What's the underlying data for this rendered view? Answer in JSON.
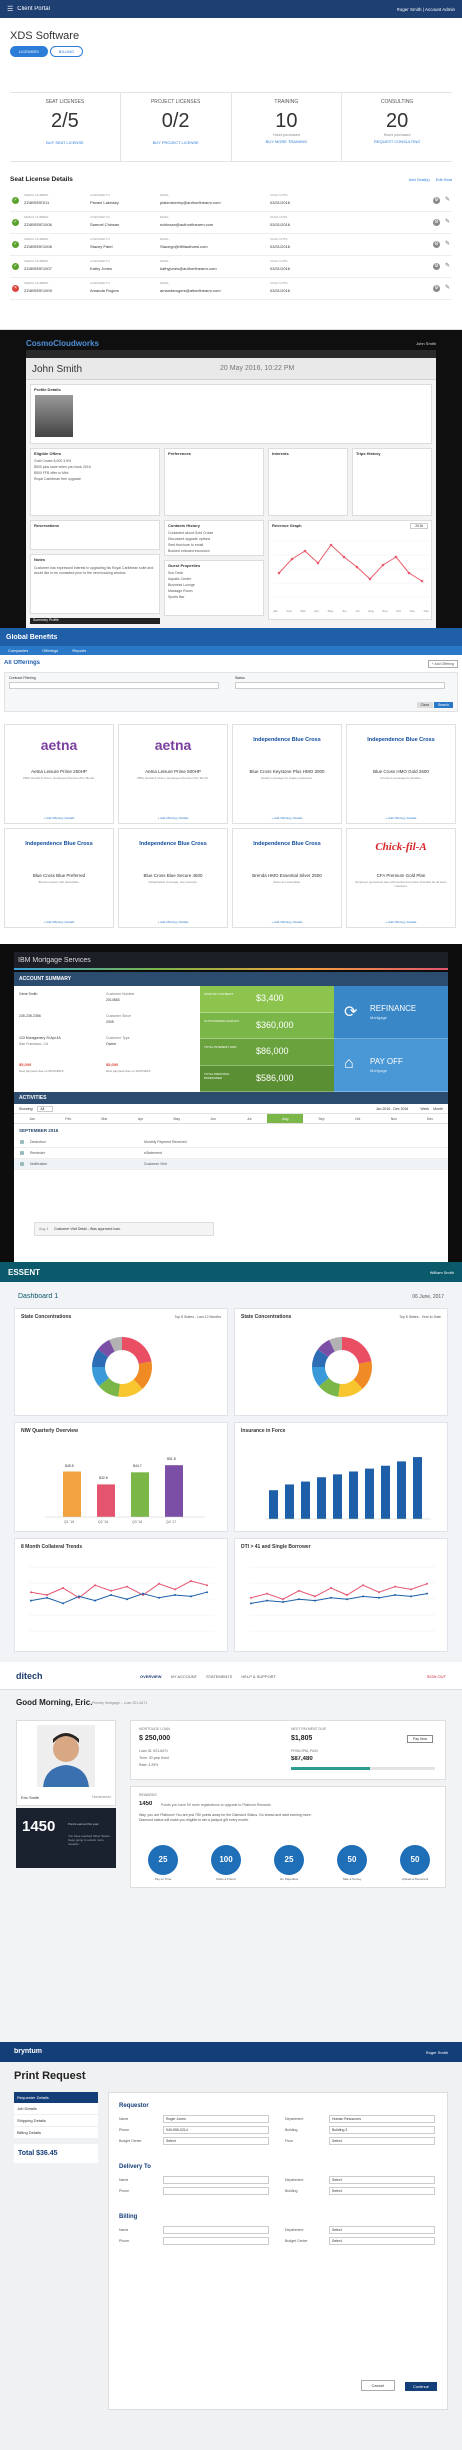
{
  "portal": {
    "app_name": "Client Portal",
    "user": "Roger Smith | Account Admin",
    "title": "XDS Software",
    "tabs": [
      "LICENSES",
      "BILLING"
    ],
    "cards": [
      {
        "title": "SEAT LICENSES",
        "value": "2/5",
        "link": "BUY SEAT LICENSE"
      },
      {
        "title": "PROJECT LICENSES",
        "value": "0/2",
        "link": "BUY PROJECT LICENSE"
      },
      {
        "title": "TRAINING",
        "value": "10",
        "sub": "Hours purchased",
        "link": "BUY MORE TRAINING"
      },
      {
        "title": "CONSULTING",
        "value": "20",
        "sub": "Hours purchased",
        "link": "REQUEST CONSULTING"
      }
    ],
    "section_title": "Seat License Details",
    "section_actions": [
      "Add Seat(s)",
      "Edit Seat"
    ],
    "col_labels": [
      "SERIAL NUMBER",
      "LICENSED TO",
      "EMAIL",
      "VALID UNTIL"
    ],
    "rows": [
      {
        "serial": "ZZ4BSEIE011",
        "name": "Pavani Lakinsky",
        "email": "plakinskeriny@authorfinearm.com",
        "date": "03/31/2016",
        "status": "ok"
      },
      {
        "serial": "ZZ4BSEIE1006",
        "name": "Samuel Chinsan",
        "email": "schinsan@authorfinearm.com",
        "date": "03/31/2016",
        "status": "ok"
      },
      {
        "serial": "ZZ4BSEIE1008",
        "name": "Stacey Patel",
        "email": "Staceyp@rtfiilautharsi.com",
        "date": "03/31/2016",
        "status": "ok"
      },
      {
        "serial": "ZZ4BSEIE1007",
        "name": "Kathy Jones",
        "email": "kathyjones@authorfinearm.com",
        "date": "03/31/2016",
        "status": "ok"
      },
      {
        "serial": "ZZ4BSEIE1009",
        "name": "Amanda Rogers",
        "email": "amandarogers@altonfinearm.com",
        "date": "03/31/2016",
        "status": "err"
      }
    ]
  },
  "crm": {
    "brand": "CosmoCloudworks",
    "user_name": "John Smith",
    "page_title": "John Smith",
    "date": "20 May 2016, 10:22 PM",
    "sections": [
      "Profile Details",
      "Eligible Offers",
      "Preferences",
      "Interests",
      "Trips History",
      "Reservations",
      "Contacts History",
      "Revenue Graph",
      "Notes",
      "Guest Properties"
    ],
    "offers": [
      "Gold Cruise 8,000 3.5%",
      "$500 plus save when you book 2016",
      "$500 FFB offer in Mini",
      "Royal Caribbean free upgrade"
    ],
    "contacts": [
      "Contacted about Gold Cruise",
      "Discussed upgrade options",
      "Sent brochure to email",
      "Booked onboard excursion"
    ],
    "notes_text": "Customer has expressed interest in upgrading his Royal Caribbean suite and would like to be contacted prior to the next booking window.",
    "guest_props": [
      "Sun Deck",
      "Aquatic Center",
      "Business Lounge",
      "Massage Room",
      "Sports Bar"
    ],
    "months": [
      "Jan",
      "Feb",
      "Mar",
      "Apr",
      "May",
      "Jun",
      "Jul",
      "Aug",
      "Sep",
      "Oct",
      "Nov",
      "Dec"
    ],
    "graph_select": "2016",
    "footer": "Summary Profile"
  },
  "benefits": {
    "brand": "Global Benefits",
    "nav": [
      "Companies",
      "Offerings",
      "Reports"
    ],
    "title": "All Offerings",
    "add_label": "+ Add Offering",
    "filter_labels": [
      "Contract Filtering",
      "Status"
    ],
    "buttons": [
      "Clear",
      "Search"
    ],
    "offers": [
      {
        "logo": "aetna",
        "name": "Aetna Leisure Prime 250HP",
        "desc": "PBM, Dental & Vision. Employee Premium Per Month.",
        "brand": "aetna"
      },
      {
        "logo": "aetna",
        "name": "Aetna Leisure Prime 500HP",
        "desc": "PBM, Dental & Vision. Employee Premium Per Month.",
        "brand": "aetna"
      },
      {
        "logo": "Independence Blue Cross",
        "name": "Blue Cross Keystone Plus HMO 3000",
        "desc": "Health Coverage for single employees.",
        "brand": "ibc"
      },
      {
        "logo": "Independence Blue Cross",
        "name": "Blue Cross HMO Gold 2500",
        "desc": "Premium coverage for families.",
        "brand": "ibc"
      },
      {
        "logo": "Independence Blue Cross",
        "name": "Blue Cross Blue Preferred",
        "desc": "Broad network with deductible.",
        "brand": "ibc"
      },
      {
        "logo": "Independence Blue Cross",
        "name": "Blue Cross Blue Secure 4500",
        "desc": "Catastrophic coverage, low premium.",
        "brand": "ibc"
      },
      {
        "logo": "Independence Blue Cross",
        "name": "Brenda HMO Essential Silver 2500",
        "desc": "Silver tier essentials.",
        "brand": "ibc"
      },
      {
        "logo": "Chick-fil-A",
        "name": "CFA Premium Gold Plan",
        "desc": "Employer sponsored plan with dental and vision included for all team members.",
        "brand": "cfa"
      }
    ],
    "footer_link": "+ Add Offering  |  Details"
  },
  "mortgage": {
    "brand": "IBM Mortgage Services",
    "summary_title": "ACCOUNT SUMMARY",
    "rows": [
      {
        "l1": "Gene Smith",
        "v1": "",
        "l2": "Customer Number",
        "v2": "2014563"
      },
      {
        "l1": "235-235-2356",
        "v1": "",
        "l2": "Customer Since",
        "v2": "2005"
      },
      {
        "l1": "123 Montgomery St Apt 4A",
        "v1": "San Francisco, CA",
        "l2": "Customer Type",
        "v2": "Owner"
      }
    ],
    "amounts": [
      "$5,000",
      "$5,000"
    ],
    "amount_labels": [
      "Next payment due on 09/15/2016",
      "Next payment due on 10/15/2016"
    ],
    "metrics": [
      {
        "label": "MONTHLY PAYMENT",
        "value": "$3,400"
      },
      {
        "label": "OUTSTANDING AMOUNT",
        "value": "$360,000"
      },
      {
        "label": "TOTAL INTEREST PAID",
        "value": "$86,000"
      },
      {
        "label": "TOTAL PRINCIPAL BORROWED",
        "value": "$586,000"
      }
    ],
    "actions": [
      {
        "title": "REFINANCE",
        "sub": "Mortgage"
      },
      {
        "title": "PAY OFF",
        "sub": "Mortgage"
      }
    ],
    "activities_title": "ACTIVITIES",
    "show_label": "Showing:",
    "show_val": "All",
    "year_nav": "Jan 2016 - Dec 2016",
    "view_modes": [
      "Week",
      "Month"
    ],
    "months": [
      "Jan",
      "Feb",
      "Mar",
      "Apr",
      "May",
      "Jun",
      "Jul",
      "Aug",
      "Sep",
      "Oct",
      "Nov",
      "Dec"
    ],
    "active_month": "Aug",
    "month_heading": "SEPTEMBER 2016",
    "activities": [
      {
        "type": "Deduction",
        "desc": "Monthly Payment Received"
      },
      {
        "type": "Reminder",
        "desc": "eStatement"
      },
      {
        "type": "Notification",
        "desc": "Customer Visit"
      }
    ],
    "comment_label": "Aug 4",
    "comment": "Customer Visit Detail - Was approved loan."
  },
  "essent": {
    "brand": "ESSENT",
    "user": "William Smith",
    "dash_title": "Dashboard 1",
    "date": "06 June, 2017",
    "charts": [
      {
        "title": "State Concentrations",
        "filter": "Top 8 States - Last 12 Months"
      },
      {
        "title": "State Concentrations",
        "filter": "Top 8 States - Year to Date"
      },
      {
        "title": "NIW Quarterly Overview",
        "filter": ""
      },
      {
        "title": "Insurance in Force",
        "filter": ""
      },
      {
        "title": "8 Month Collateral Trends",
        "filter": ""
      },
      {
        "title": "DTI > 41 and Single Borrower",
        "filter": ""
      }
    ],
    "niw": {
      "bars": [
        45.5,
        32.6,
        44.7,
        51.8
      ],
      "labels": [
        "$45.5",
        "$32.6",
        "$44.7",
        "$51.8"
      ],
      "quarters": [
        "Q1 '16",
        "Q2 '16",
        "Q3 '16",
        "Q4 '17"
      ],
      "colors": [
        "#f2a340",
        "#e4546e",
        "#7ab648",
        "#7b4fa6"
      ]
    },
    "iif": {
      "quarters": [
        "Q1",
        "Q2",
        "Q3",
        "Q4",
        "Q5",
        "Q6",
        "Q7",
        "Q8",
        "Q9",
        "Q10"
      ],
      "values": [
        40,
        48,
        52,
        58,
        62,
        66,
        70,
        74,
        80,
        86
      ]
    },
    "donut_colors": [
      "#e94e62",
      "#f08a24",
      "#f7c52d",
      "#7ab648",
      "#3a9ad9",
      "#2c6db5",
      "#7b4fa6",
      "#b2b2b2"
    ],
    "donut_values": [
      22,
      16,
      14,
      12,
      11,
      10,
      8,
      7
    ]
  },
  "selfservice": {
    "brand": "ditech",
    "nav": [
      "OVERVIEW",
      "MY ACCOUNT",
      "STATEMENTS",
      "HELP & SUPPORT"
    ],
    "signout": "SIGN OUT",
    "greeting": "Good Morning, Eric.",
    "sub_greeting": "Primary Mortgage – Loan 921-6471",
    "profile_name": "Eric Smith",
    "profile_tag": "Homeowner",
    "points": "1450",
    "points_label": "Points earned this year",
    "points_desc": "You have reached Silver Status. Keep going to unlock more rewards.",
    "loan_label": "MORTGAGE LOAN",
    "loan_value": "$ 250,000",
    "loan_meta": [
      "Loan ID: 921-6471",
      "Term: 30 year fixed",
      "Rate: 4.25%"
    ],
    "payment_label": "NEXT PAYMENT DUE",
    "payment_value": "$1,805",
    "payment_btn": "Pay Now",
    "principal_label": "PRINCIPAL PAID",
    "principal_value": "$87,480",
    "rewards_label": "REWARDS",
    "rewards_points": "1450",
    "rewards_text": "Points you have   50 more registrations to upgrade to Platinum Rewards",
    "rewards_msg": "Way, you are Platinum! You are just 750 points away for the Diamond Status. Go ahead and start earning more. Diamond status will make you eligible to win a jackpot gift every month.",
    "circles": [
      {
        "v": "25",
        "l": "Pay on Time"
      },
      {
        "v": "100",
        "l": "Refer a Friend"
      },
      {
        "v": "25",
        "l": "Go Paperless"
      },
      {
        "v": "50",
        "l": "Take a Survey"
      },
      {
        "v": "50",
        "l": "Upload a Document"
      }
    ]
  },
  "print": {
    "brand": "bryntum",
    "user": "Roger Smith",
    "title": "Print Request",
    "side": [
      "Requester Details",
      "Job Details",
      "Shipping Details",
      "Billing Details"
    ],
    "total": "Total $36.45",
    "sections": [
      {
        "title": "Requestor",
        "fields": [
          [
            "Name",
            "Roger Jones"
          ],
          [
            "Phone",
            "949-555-0214"
          ],
          [
            "Budget Center",
            "Select"
          ]
        ],
        "fields2": [
          [
            "Department",
            "Human Resources"
          ],
          [
            "Building",
            "Building 3"
          ],
          [
            "Floor",
            "Select"
          ]
        ]
      },
      {
        "title": "Delivery To",
        "fields": [
          [
            "Name",
            ""
          ],
          [
            "Phone",
            ""
          ]
        ],
        "fields2": [
          [
            "Department",
            "Select"
          ],
          [
            "Building",
            "Select"
          ]
        ]
      },
      {
        "title": "Billing",
        "fields": [
          [
            "Name",
            ""
          ],
          [
            "Phone",
            ""
          ]
        ],
        "fields2": [
          [
            "Department",
            "Select"
          ],
          [
            "Budget Center",
            "Select"
          ]
        ]
      }
    ],
    "buttons": [
      "Cancel",
      "Continue"
    ]
  }
}
